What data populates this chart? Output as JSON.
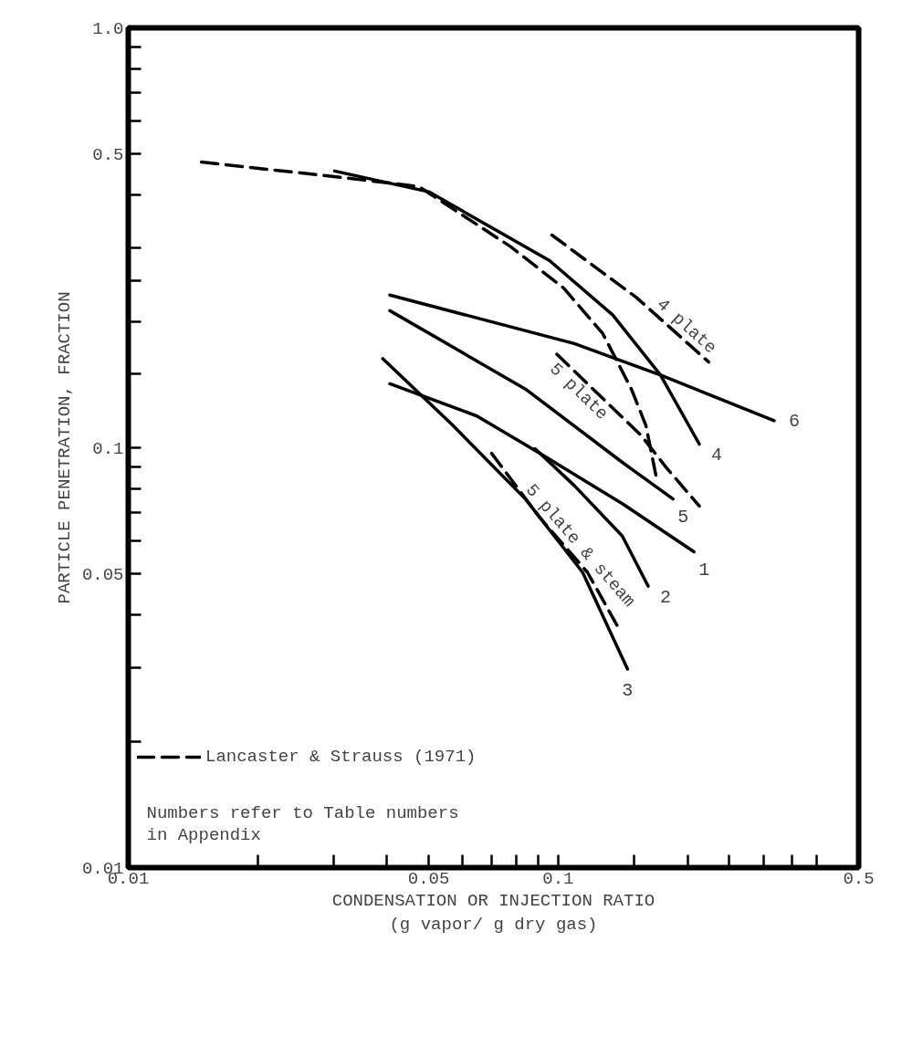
{
  "chart_data": {
    "type": "line",
    "xlabel": "CONDENSATION OR INJECTION RATIO\n(g vapor/ g dry gas)",
    "ylabel": "PARTICLE PENETRATION, FRACTION",
    "log": "xy",
    "xlim": [
      0.01,
      0.5
    ],
    "ylim": [
      0.01,
      1.0
    ],
    "xticks": [
      0.01,
      {
        "value": 0.02,
        "label": null
      },
      {
        "value": 0.03,
        "label": null
      },
      {
        "value": 0.04,
        "label": null
      },
      0.05,
      {
        "value": 0.06,
        "label": null
      },
      {
        "value": 0.07,
        "label": null
      },
      {
        "value": 0.08,
        "label": null
      },
      {
        "value": 0.09,
        "label": null
      },
      0.1,
      {
        "value": 0.15,
        "label": null
      },
      {
        "value": 0.2,
        "label": null
      },
      {
        "value": 0.25,
        "label": null
      },
      {
        "value": 0.3,
        "label": null
      },
      {
        "value": 0.35,
        "label": null
      },
      {
        "value": 0.4,
        "label": null
      },
      0.5
    ],
    "yticks": [
      0.01,
      {
        "value": 0.02,
        "label": null
      },
      {
        "value": 0.03,
        "label": null
      },
      {
        "value": 0.04,
        "label": null
      },
      0.05,
      {
        "value": 0.06,
        "label": null
      },
      {
        "value": 0.07,
        "label": null
      },
      {
        "value": 0.08,
        "label": null
      },
      {
        "value": 0.09,
        "label": null
      },
      0.1,
      {
        "value": 0.15,
        "label": null
      },
      {
        "value": 0.2,
        "label": null
      },
      {
        "value": 0.25,
        "label": null
      },
      {
        "value": 0.3,
        "label": null
      },
      {
        "value": 0.4,
        "label": null
      },
      0.5,
      {
        "value": 0.6,
        "label": null
      },
      {
        "value": 0.7,
        "label": null
      },
      {
        "value": 0.8,
        "label": null
      },
      {
        "value": 0.9,
        "label": null
      },
      {
        "value": 1.0,
        "label": "1.0"
      }
    ],
    "grid": false,
    "legend": "bottom left",
    "marker": "none",
    "series": [
      {
        "name": "Lancaster & Strauss (1971)",
        "color": "#000000",
        "line_style": "dashed",
        "x": [
          0.0148,
          0.0315,
          0.0474,
          0.0776,
          0.103,
          0.127,
          0.148,
          0.16,
          0.169
        ],
        "values": [
          0.479,
          0.44,
          0.419,
          0.301,
          0.24,
          0.187,
          0.138,
          0.113,
          0.0855
        ]
      },
      {
        "name": "4 plate",
        "color": "#000000",
        "line_style": "dashed",
        "x": [
          0.0967,
          0.152,
          0.224
        ],
        "values": [
          0.321,
          0.228,
          0.16
        ]
      },
      {
        "name": "5 plate",
        "color": "#000000",
        "line_style": "dashed",
        "x": [
          0.0993,
          0.127,
          0.156,
          0.178,
          0.213
        ],
        "values": [
          0.167,
          0.131,
          0.107,
          0.09,
          0.0726
        ]
      },
      {
        "name": "5 plate & steam",
        "color": "#000000",
        "line_style": "dashed",
        "x": [
          0.07,
          0.0906,
          0.117,
          0.137
        ],
        "values": [
          0.097,
          0.0682,
          0.0505,
          0.0378
        ]
      },
      {
        "name": "4",
        "color": "#000000",
        "line_style": "solid",
        "x": [
          0.0302,
          0.05,
          0.0955,
          0.134,
          0.173,
          0.213
        ],
        "values": [
          0.456,
          0.407,
          0.279,
          0.207,
          0.149,
          0.102
        ]
      },
      {
        "name": "6",
        "color": "#000000",
        "line_style": "solid",
        "x": [
          0.0406,
          0.109,
          0.173,
          0.318
        ],
        "values": [
          0.231,
          0.177,
          0.149,
          0.116
        ]
      },
      {
        "name": "5",
        "color": "#000000",
        "line_style": "solid",
        "x": [
          0.0406,
          0.0839,
          0.141,
          0.185
        ],
        "values": [
          0.212,
          0.138,
          0.0923,
          0.0755
        ]
      },
      {
        "name": "1",
        "color": "#000000",
        "line_style": "solid",
        "x": [
          0.0406,
          0.0647,
          0.0906,
          0.141,
          0.207
        ],
        "values": [
          0.142,
          0.119,
          0.097,
          0.0736,
          0.0565
        ]
      },
      {
        "name": "2",
        "color": "#000000",
        "line_style": "solid",
        "x": [
          0.0883,
          0.109,
          0.141,
          0.162
        ],
        "values": [
          0.0995,
          0.0813,
          0.0616,
          0.0468
        ]
      },
      {
        "name": "3",
        "color": "#000000",
        "line_style": "solid",
        "x": [
          0.0391,
          0.0569,
          0.0839,
          0.114,
          0.145
        ],
        "values": [
          0.163,
          0.113,
          0.0755,
          0.0505,
          0.0297
        ]
      }
    ],
    "annotations": [
      "Numbers refer to Table numbers in Appendix"
    ]
  }
}
